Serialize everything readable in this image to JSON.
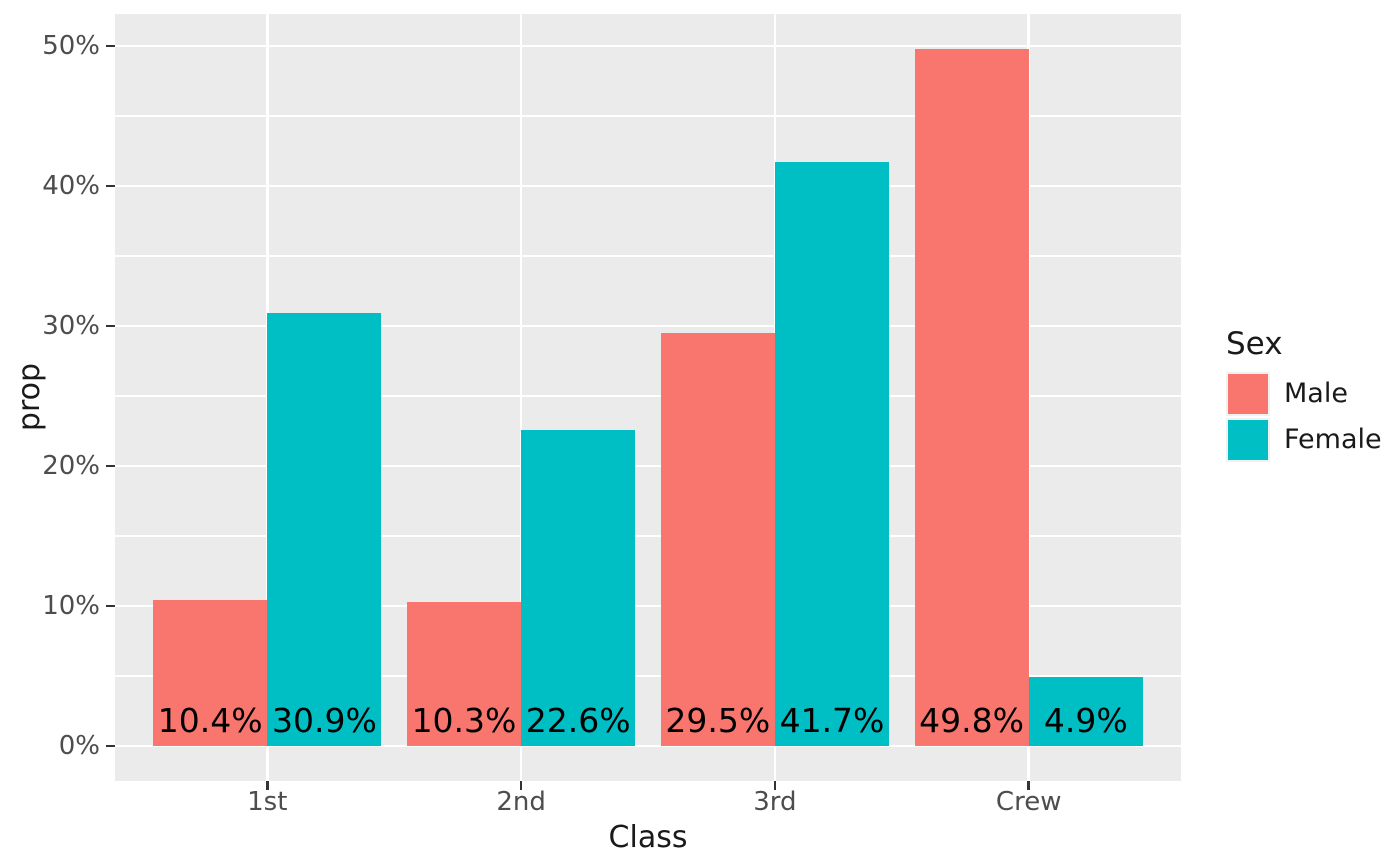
{
  "chart_data": {
    "type": "bar",
    "subtype": "dodged-grouped-bar",
    "title": "",
    "xlabel": "Class",
    "ylabel": "prop",
    "categories": [
      "1st",
      "2nd",
      "3rd",
      "Crew"
    ],
    "series": [
      {
        "name": "Male",
        "color": "#F8766D",
        "values": [
          10.4,
          10.3,
          29.5,
          49.8
        ],
        "labels": [
          "10.4%",
          "10.3%",
          "29.5%",
          "49.8%"
        ]
      },
      {
        "name": "Female",
        "color": "#00BFC4",
        "values": [
          30.9,
          22.6,
          41.7,
          4.9
        ],
        "labels": [
          "30.9%",
          "22.6%",
          "41.7%",
          "4.9%"
        ]
      }
    ],
    "y_ticks": [
      {
        "value": 0,
        "label": "0%"
      },
      {
        "value": 10,
        "label": "10%"
      },
      {
        "value": 20,
        "label": "20%"
      },
      {
        "value": 30,
        "label": "30%"
      },
      {
        "value": 40,
        "label": "40%"
      },
      {
        "value": 50,
        "label": "50%"
      }
    ],
    "y_minor_ticks": [
      5,
      15,
      25,
      35,
      45
    ],
    "ylim": [
      -2.5,
      52.3
    ],
    "grid": {
      "horizontal": "major+minor",
      "vertical": "major-only",
      "color": "#FFFFFF"
    },
    "legend": {
      "title": "Sex",
      "position": "right"
    },
    "colors": {
      "panel_background": "#EBEBEB",
      "grid": "#FFFFFF",
      "tick_label_text": "#4D4D4D",
      "axis_title_text": "#1A1A1A",
      "bar_label_text": "#000000",
      "tick_mark": "#333333",
      "figure_background": "#FFFFFF"
    },
    "bar_value_labels_position": "inside-bottom"
  }
}
